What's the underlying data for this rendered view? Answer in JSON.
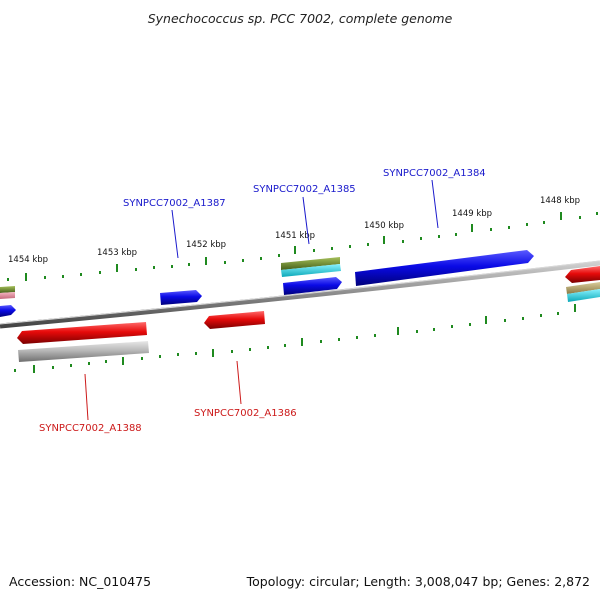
{
  "title": "Synechococcus sp. PCC 7002, complete genome",
  "footer": {
    "accession": "Accession: NC_010475",
    "summary": "Topology: circular; Length: 3,008,047 bp; Genes: 2,872"
  },
  "colors": {
    "backbone": "#8a8a8a",
    "tick": "#1f8a1f",
    "label_forward": "#1a1acc",
    "label_reverse": "#cc1a1a",
    "blue": "#0a0ae6",
    "red": "#e60a0a",
    "grey": "#b8b8b8",
    "olive": "#6b8a23",
    "cyan": "#19d9e6",
    "tan": "#b8a86b",
    "pink": "#e68a9a"
  },
  "scale_ticks": [
    "1454 kbp",
    "1453 kbp",
    "1452 kbp",
    "1451 kbp",
    "1450 kbp",
    "1449 kbp",
    "1448 kbp"
  ],
  "gene_labels": {
    "a1387": "SYNPCC7002_A1387",
    "a1385": "SYNPCC7002_A1385",
    "a1384": "SYNPCC7002_A1384",
    "a1388": "SYNPCC7002_A1388",
    "a1386": "SYNPCC7002_A1386"
  }
}
